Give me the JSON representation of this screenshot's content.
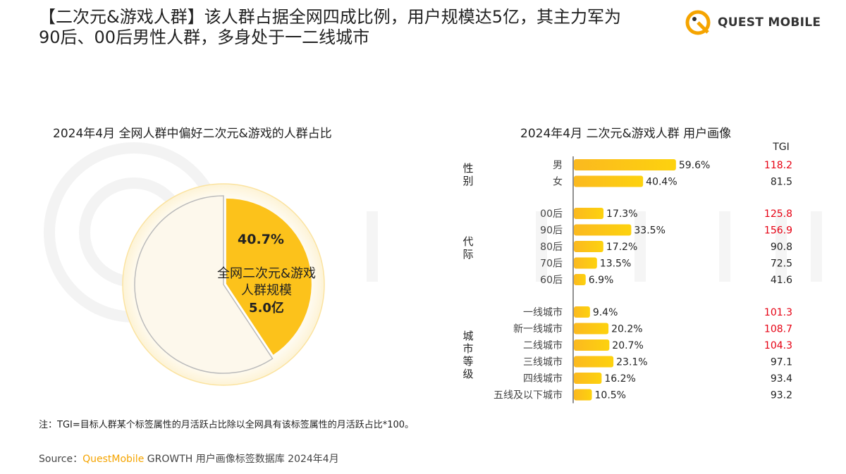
{
  "header": {
    "title_line1": "【二次元&游戏人群】该人群占据全网四成比例，用户规模达5亿，其主力军为",
    "title_line2": "90后、00后男性人群，多身处于一二线城市",
    "logo_text": "QUEST MOBILE"
  },
  "watermark": "QUEST MOBILE",
  "colors": {
    "accent": "#fcc21b",
    "tgi_high": "#e60012",
    "pie_rest": "#fdf8ec"
  },
  "chart_data": [
    {
      "type": "pie",
      "title": "2024年4月 全网人群中偏好二次元&游戏的人群占比",
      "slices": [
        {
          "label": "全网二次元&游戏人群规模",
          "value": 40.7,
          "value_label": "40.7%",
          "size_label": "5.0亿"
        },
        {
          "label": "",
          "value": 59.3
        }
      ]
    },
    {
      "type": "bar",
      "orientation": "horizontal",
      "title": "2024年4月 二次元&游戏人群 用户画像",
      "tgi_header": "TGI",
      "groups": [
        {
          "name": "性别",
          "categories": [
            "男",
            "女"
          ],
          "values": [
            59.6,
            40.4
          ],
          "tgi": [
            118.2,
            81.5
          ]
        },
        {
          "name": "代际",
          "categories": [
            "00后",
            "90后",
            "80后",
            "70后",
            "60后"
          ],
          "values": [
            17.3,
            33.5,
            17.2,
            13.5,
            6.9
          ],
          "tgi": [
            125.8,
            156.9,
            90.8,
            72.5,
            41.6
          ]
        },
        {
          "name": "城市等级",
          "categories": [
            "一线城市",
            "新一线城市",
            "二线城市",
            "三线城市",
            "四线城市",
            "五线及以下城市"
          ],
          "values": [
            9.4,
            20.2,
            20.7,
            23.1,
            16.2,
            10.5
          ],
          "tgi": [
            101.3,
            108.7,
            104.3,
            97.1,
            93.4,
            93.2
          ]
        }
      ],
      "unit": "%"
    }
  ],
  "footer": {
    "note": "注：TGI=目标人群某个标签属性的月活跃占比除以全网具有该标签属性的月活跃占比*100。",
    "source_prefix": "Source：",
    "source_brand": "QuestMobile",
    "source_rest": " GROWTH 用户画像标签数据库 2024年4月"
  }
}
